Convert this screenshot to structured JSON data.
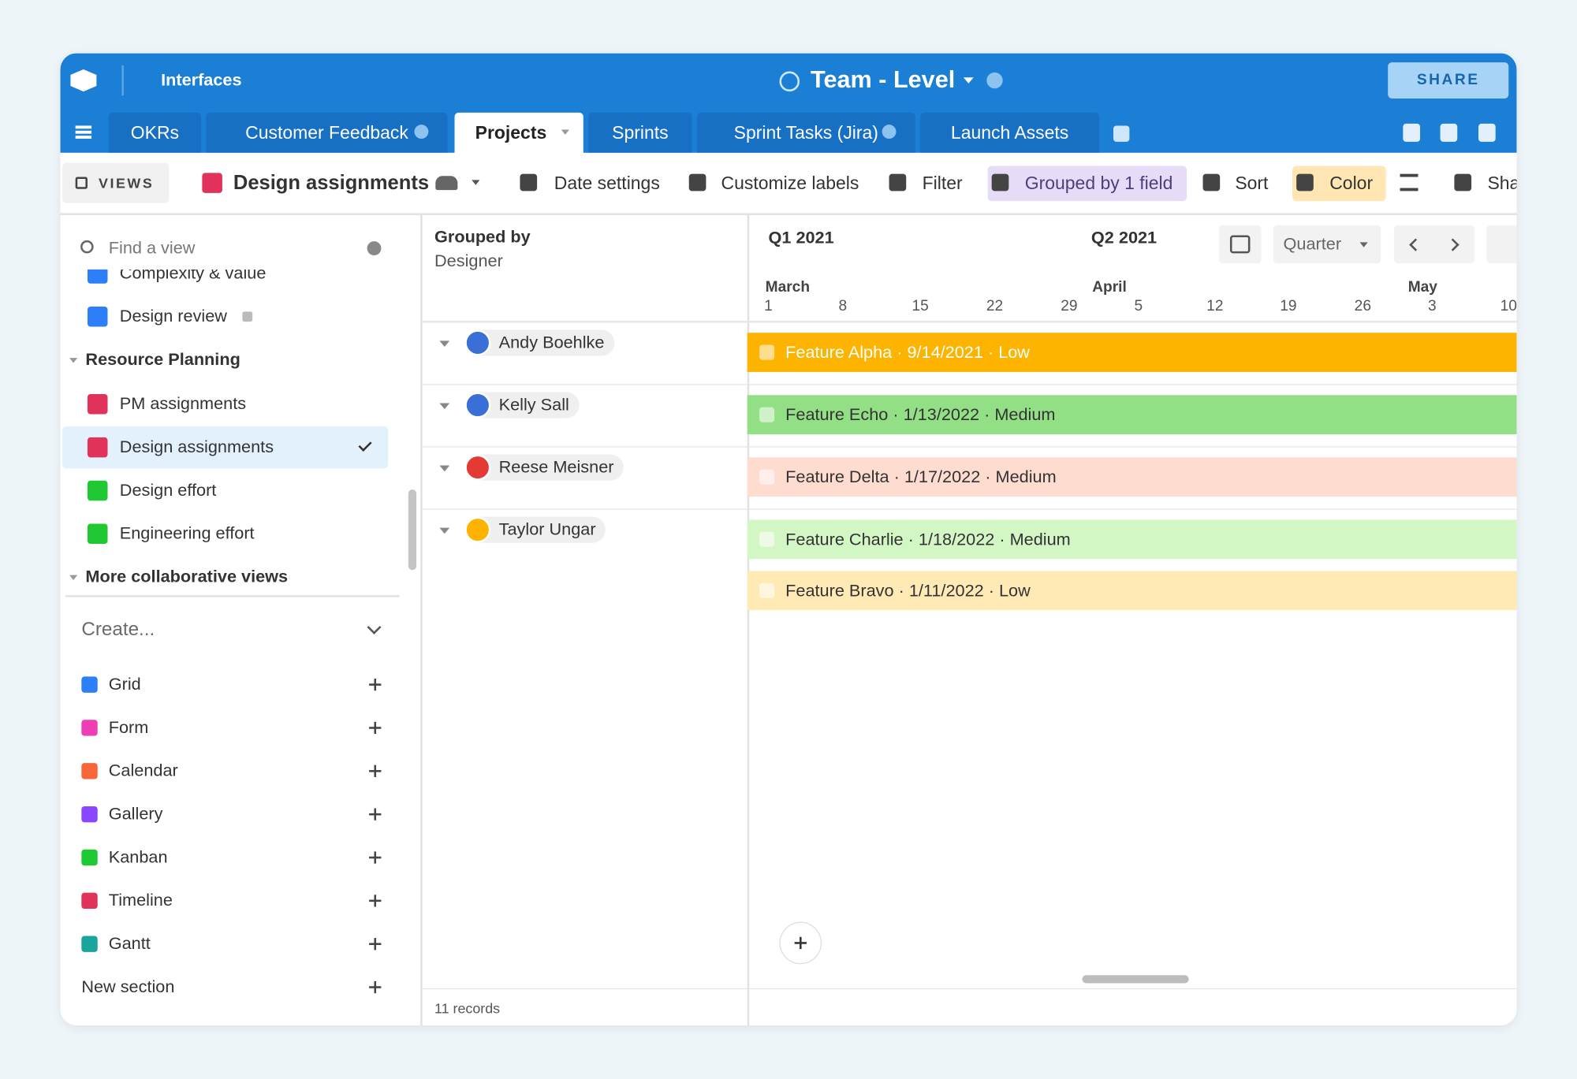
{
  "header": {
    "app": "Interfaces",
    "title": "Team - Level",
    "share": "SHARE"
  },
  "tabs": [
    {
      "label": "OKRs"
    },
    {
      "label": "Customer Feedback",
      "info": true
    },
    {
      "label": "Projects",
      "active": true
    },
    {
      "label": "Sprints"
    },
    {
      "label": "Sprint Tasks (Jira)",
      "info": true
    },
    {
      "label": "Launch Assets"
    }
  ],
  "toolbar": {
    "views": "VIEWS",
    "view": "Design assignments",
    "buttons": [
      {
        "label": "Date settings"
      },
      {
        "label": "Customize labels"
      },
      {
        "label": "Filter"
      },
      {
        "label": "Grouped by 1 field",
        "highlight": "#e6dcf7"
      },
      {
        "label": "Sort"
      },
      {
        "label": "Color",
        "highlight": "#ffe6b3"
      },
      {
        "label": "Sha"
      }
    ]
  },
  "sidebar": {
    "search": "Find a view",
    "items": [
      {
        "label": "Complexity & value",
        "icon_color": "#2d7ff9"
      },
      {
        "label": "Design review",
        "icon_color": "#2d7ff9",
        "locked": true
      },
      {
        "section": true,
        "label": "Resource Planning"
      },
      {
        "label": "PM assignments",
        "icon_color": "#e0325a"
      },
      {
        "label": "Design assignments",
        "icon_color": "#e0325a",
        "selected": true
      },
      {
        "label": "Design effort",
        "icon_color": "#20c933"
      },
      {
        "label": "Engineering effort",
        "icon_color": "#20c933"
      },
      {
        "section": true,
        "label": "More collaborative views"
      }
    ],
    "create": "Create...",
    "create_items": [
      {
        "label": "Grid",
        "icon_color": "#2d7ff9"
      },
      {
        "label": "Form",
        "icon_color": "#ee3eb6"
      },
      {
        "label": "Calendar",
        "icon_color": "#f7653b"
      },
      {
        "label": "Gallery",
        "icon_color": "#8b46ff"
      },
      {
        "label": "Kanban",
        "icon_color": "#20c933"
      },
      {
        "label": "Timeline",
        "icon_color": "#e0325a"
      },
      {
        "label": "Gantt",
        "icon_color": "#19a59b"
      },
      {
        "label": "New section"
      }
    ]
  },
  "grouping": {
    "title": "Grouped by",
    "field": "Designer",
    "groups": [
      {
        "name": "Andy Boehlke",
        "avatar": "#3a6fd8"
      },
      {
        "name": "Kelly Sall",
        "avatar": "#3a6fd8"
      },
      {
        "name": "Reese Meisner",
        "avatar": "#e53935"
      },
      {
        "name": "Taylor Ungar",
        "avatar": "#ffb300"
      }
    ],
    "footer": "11 records"
  },
  "timeline": {
    "quarters": [
      "Q1 2021",
      "Q2 2021"
    ],
    "scale": "Quarter",
    "months": [
      "March",
      "April",
      "May"
    ],
    "days": [
      "1",
      "8",
      "15",
      "22",
      "29",
      "5",
      "12",
      "19",
      "26",
      "3",
      "10"
    ],
    "bars": [
      {
        "label": "Feature Alpha · 9/14/2021 · Low",
        "color": "#fcb400",
        "text_color": "#ffffff"
      },
      {
        "label": "Feature Echo · 1/13/2022 · Medium",
        "color": "#93df86",
        "text_color": "#333333"
      },
      {
        "label": "Feature Delta · 1/17/2022 · Medium",
        "color": "#ffdcd0",
        "text_color": "#333333"
      },
      {
        "label": "Feature Charlie · 1/18/2022 · Medium",
        "color": "#d2f7c5",
        "text_color": "#333333"
      },
      {
        "label": "Feature Bravo · 1/11/2022 · Low",
        "color": "#ffeab6",
        "text_color": "#333333"
      }
    ]
  }
}
